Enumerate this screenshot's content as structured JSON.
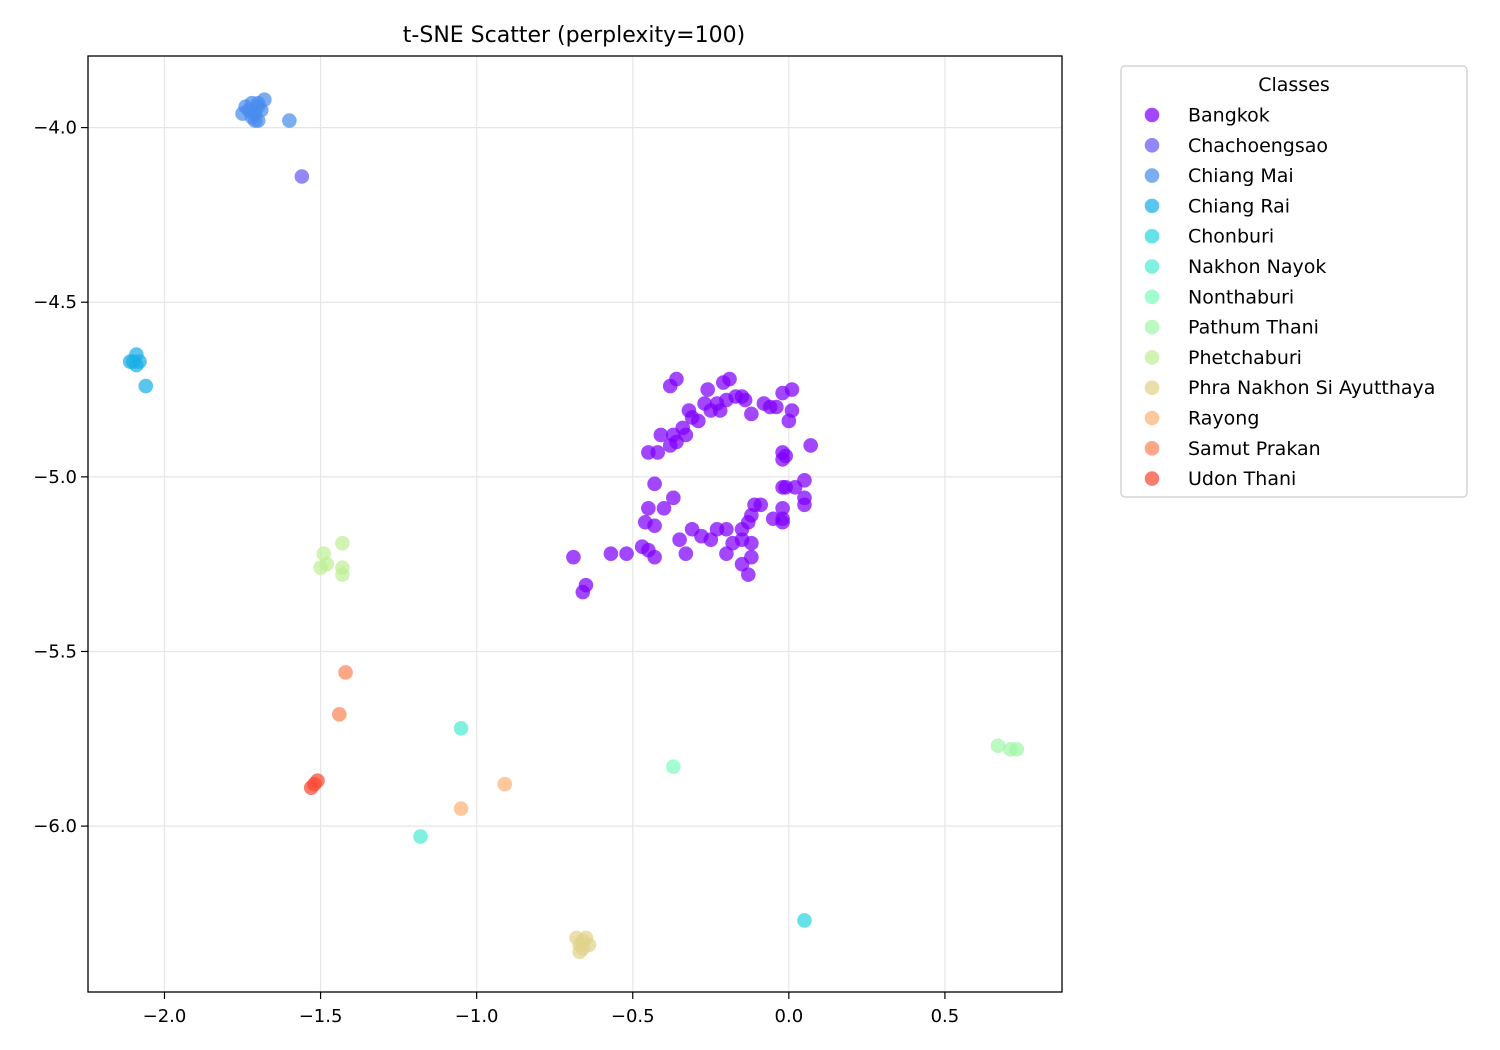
{
  "chart_data": {
    "type": "scatter",
    "title": "t-SNE Scatter (perplexity=100)",
    "xlabel": "",
    "ylabel": "",
    "xlim": [
      -2.245,
      0.875
    ],
    "ylim": [
      -6.475,
      -3.795
    ],
    "xticks": [
      -2.0,
      -1.5,
      -1.0,
      -0.5,
      0.0,
      0.5
    ],
    "yticks": [
      -4.0,
      -4.5,
      -5.0,
      -5.5,
      -6.0
    ],
    "xtick_labels": [
      "−2.0",
      "−1.5",
      "−1.0",
      "−0.5",
      "0.0",
      "0.5"
    ],
    "ytick_labels": [
      "−4.0",
      "−4.5",
      "−5.0",
      "−5.5",
      "−6.0"
    ],
    "grid": true,
    "legend": {
      "title": "Classes",
      "placement": "outside-right-top"
    },
    "series": [
      {
        "name": "Bangkok",
        "color": "#8000ff",
        "points": [
          [
            -0.38,
            -4.74
          ],
          [
            -0.36,
            -4.72
          ],
          [
            -0.26,
            -4.75
          ],
          [
            -0.21,
            -4.73
          ],
          [
            -0.19,
            -4.72
          ],
          [
            -0.02,
            -4.76
          ],
          [
            0.01,
            -4.75
          ],
          [
            -0.32,
            -4.81
          ],
          [
            -0.31,
            -4.83
          ],
          [
            -0.29,
            -4.84
          ],
          [
            -0.27,
            -4.79
          ],
          [
            -0.25,
            -4.81
          ],
          [
            -0.23,
            -4.79
          ],
          [
            -0.22,
            -4.81
          ],
          [
            -0.2,
            -4.78
          ],
          [
            -0.17,
            -4.77
          ],
          [
            -0.15,
            -4.77
          ],
          [
            -0.14,
            -4.78
          ],
          [
            -0.12,
            -4.82
          ],
          [
            -0.08,
            -4.79
          ],
          [
            -0.06,
            -4.8
          ],
          [
            -0.04,
            -4.8
          ],
          [
            0.01,
            -4.81
          ],
          [
            0.0,
            -4.84
          ],
          [
            -0.41,
            -4.88
          ],
          [
            -0.37,
            -4.88
          ],
          [
            -0.34,
            -4.86
          ],
          [
            -0.33,
            -4.88
          ],
          [
            -0.36,
            -4.9
          ],
          [
            -0.38,
            -4.91
          ],
          [
            -0.42,
            -4.93
          ],
          [
            -0.45,
            -4.93
          ],
          [
            0.07,
            -4.91
          ],
          [
            -0.02,
            -4.93
          ],
          [
            -0.02,
            -4.95
          ],
          [
            -0.01,
            -4.94
          ],
          [
            0.05,
            -5.01
          ],
          [
            0.02,
            -5.03
          ],
          [
            -0.02,
            -5.03
          ],
          [
            -0.01,
            -5.03
          ],
          [
            0.05,
            -5.06
          ],
          [
            0.05,
            -5.08
          ],
          [
            -0.43,
            -5.02
          ],
          [
            -0.37,
            -5.06
          ],
          [
            -0.4,
            -5.09
          ],
          [
            -0.45,
            -5.09
          ],
          [
            -0.46,
            -5.13
          ],
          [
            -0.43,
            -5.14
          ],
          [
            -0.11,
            -5.08
          ],
          [
            -0.09,
            -5.08
          ],
          [
            -0.12,
            -5.11
          ],
          [
            -0.13,
            -5.13
          ],
          [
            -0.05,
            -5.12
          ],
          [
            -0.02,
            -5.09
          ],
          [
            -0.02,
            -5.12
          ],
          [
            -0.02,
            -5.13
          ],
          [
            -0.31,
            -5.15
          ],
          [
            -0.28,
            -5.17
          ],
          [
            -0.25,
            -5.18
          ],
          [
            -0.23,
            -5.15
          ],
          [
            -0.2,
            -5.15
          ],
          [
            -0.15,
            -5.15
          ],
          [
            -0.35,
            -5.18
          ],
          [
            -0.18,
            -5.19
          ],
          [
            -0.15,
            -5.18
          ],
          [
            -0.12,
            -5.19
          ],
          [
            -0.69,
            -5.23
          ],
          [
            -0.57,
            -5.22
          ],
          [
            -0.52,
            -5.22
          ],
          [
            -0.47,
            -5.2
          ],
          [
            -0.45,
            -5.21
          ],
          [
            -0.43,
            -5.23
          ],
          [
            -0.33,
            -5.22
          ],
          [
            -0.2,
            -5.22
          ],
          [
            -0.12,
            -5.23
          ],
          [
            -0.15,
            -5.25
          ],
          [
            -0.13,
            -5.28
          ],
          [
            -0.65,
            -5.31
          ],
          [
            -0.66,
            -5.33
          ]
        ]
      },
      {
        "name": "Chachoengsao",
        "color": "#6a5af9",
        "points": [
          [
            -1.56,
            -4.14
          ]
        ]
      },
      {
        "name": "Chiang Mai",
        "color": "#4a8ced",
        "points": [
          [
            -1.68,
            -3.92
          ],
          [
            -1.7,
            -3.93
          ],
          [
            -1.72,
            -3.93
          ],
          [
            -1.74,
            -3.94
          ],
          [
            -1.73,
            -3.95
          ],
          [
            -1.7,
            -3.94
          ],
          [
            -1.69,
            -3.95
          ],
          [
            -1.71,
            -3.96
          ],
          [
            -1.75,
            -3.96
          ],
          [
            -1.72,
            -3.97
          ],
          [
            -1.7,
            -3.98
          ],
          [
            -1.71,
            -3.98
          ],
          [
            -1.6,
            -3.98
          ]
        ]
      },
      {
        "name": "Chiang Rai",
        "color": "#1aaee6",
        "points": [
          [
            -2.09,
            -4.65
          ],
          [
            -2.08,
            -4.67
          ],
          [
            -2.1,
            -4.67
          ],
          [
            -2.11,
            -4.67
          ],
          [
            -2.09,
            -4.68
          ],
          [
            -2.06,
            -4.74
          ]
        ]
      },
      {
        "name": "Chonburi",
        "color": "#2bd4e0",
        "points": [
          [
            0.05,
            -6.27
          ]
        ]
      },
      {
        "name": "Nakhon Nayok",
        "color": "#51ecd2",
        "points": [
          [
            -1.05,
            -5.72
          ],
          [
            -1.18,
            -6.03
          ]
        ]
      },
      {
        "name": "Nonthaburi",
        "color": "#7ffcbf",
        "points": [
          [
            -0.37,
            -5.83
          ]
        ]
      },
      {
        "name": "Pathum Thani",
        "color": "#9ff7a8",
        "points": [
          [
            0.67,
            -5.77
          ],
          [
            0.71,
            -5.78
          ],
          [
            0.73,
            -5.78
          ]
        ]
      },
      {
        "name": "Phetchaburi",
        "color": "#bfee95",
        "points": [
          [
            -1.43,
            -5.19
          ],
          [
            -1.49,
            -5.22
          ],
          [
            -1.48,
            -5.25
          ],
          [
            -1.5,
            -5.26
          ],
          [
            -1.43,
            -5.26
          ],
          [
            -1.43,
            -5.28
          ]
        ]
      },
      {
        "name": "Phra Nakhon Si Ayutthaya",
        "color": "#e2d38a",
        "points": [
          [
            -0.68,
            -6.32
          ],
          [
            -0.65,
            -6.32
          ],
          [
            -0.66,
            -6.33
          ],
          [
            -0.64,
            -6.34
          ],
          [
            -0.67,
            -6.34
          ],
          [
            -0.66,
            -6.35
          ],
          [
            -0.67,
            -6.36
          ]
        ]
      },
      {
        "name": "Rayong",
        "color": "#fdb276",
        "points": [
          [
            -0.91,
            -5.88
          ],
          [
            -1.05,
            -5.95
          ]
        ]
      },
      {
        "name": "Samut Prakan",
        "color": "#fb8657",
        "points": [
          [
            -1.42,
            -5.56
          ],
          [
            -1.44,
            -5.68
          ]
        ]
      },
      {
        "name": "Udon Thani",
        "color": "#f84a34",
        "points": [
          [
            -1.51,
            -5.87
          ],
          [
            -1.52,
            -5.88
          ],
          [
            -1.53,
            -5.89
          ]
        ]
      }
    ]
  }
}
